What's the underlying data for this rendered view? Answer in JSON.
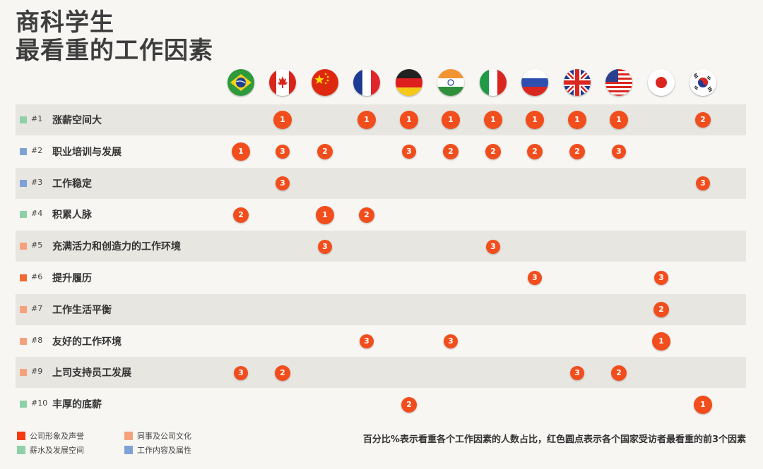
{
  "title": {
    "line1": "商科学生",
    "line2": "最看重的工作因素"
  },
  "note": "百分比%表示看重各个工作因素的人数占比，红色圆点表示各个国家受访者最看重的前3个因素",
  "legend": [
    {
      "label": "公司形象及声誉",
      "color": "#f53a12"
    },
    {
      "label": "同事及公司文化",
      "color": "#f5a27c"
    },
    {
      "label": "薪水及发展空间",
      "color": "#8ed1a8"
    },
    {
      "label": "工作内容及属性",
      "color": "#7fa2d6"
    }
  ],
  "chart_data": {
    "type": "table",
    "countries": [
      {
        "flag": "brazil-flag-icon"
      },
      {
        "flag": "canada-flag-icon"
      },
      {
        "flag": "china-flag-icon"
      },
      {
        "flag": "france-flag-icon"
      },
      {
        "flag": "germany-flag-icon"
      },
      {
        "flag": "india-flag-icon"
      },
      {
        "flag": "italy-flag-icon"
      },
      {
        "flag": "russia-flag-icon"
      },
      {
        "flag": "uk-flag-icon"
      },
      {
        "flag": "usa-flag-icon"
      },
      {
        "flag": "japan-flag-icon"
      },
      {
        "flag": "korea-flag-icon"
      }
    ],
    "factors": [
      {
        "rank": "#1",
        "label": "涨薪空间大",
        "category_color": "#8ed1a8",
        "ranks": [
          null,
          1,
          null,
          1,
          1,
          1,
          1,
          1,
          1,
          1,
          null,
          2
        ]
      },
      {
        "rank": "#2",
        "label": "职业培训与发展",
        "category_color": "#7fa2d6",
        "ranks": [
          1,
          3,
          2,
          null,
          3,
          2,
          2,
          2,
          2,
          3,
          null,
          null
        ]
      },
      {
        "rank": "#3",
        "label": "工作稳定",
        "category_color": "#7fa2d6",
        "ranks": [
          null,
          3,
          null,
          null,
          null,
          null,
          null,
          null,
          null,
          null,
          null,
          3
        ]
      },
      {
        "rank": "#4",
        "label": "积累人脉",
        "category_color": "#8ed1a8",
        "ranks": [
          2,
          null,
          1,
          2,
          null,
          null,
          null,
          null,
          null,
          null,
          null,
          null
        ]
      },
      {
        "rank": "#5",
        "label": "充满活力和创造力的工作环境",
        "category_color": "#f5a27c",
        "ranks": [
          null,
          null,
          3,
          null,
          null,
          null,
          3,
          null,
          null,
          null,
          null,
          null
        ]
      },
      {
        "rank": "#6",
        "label": "提升履历",
        "category_color": "#f06a32",
        "ranks": [
          null,
          null,
          null,
          null,
          null,
          null,
          null,
          3,
          null,
          null,
          3,
          null
        ]
      },
      {
        "rank": "#7",
        "label": "工作生活平衡",
        "category_color": "#f5a27c",
        "ranks": [
          null,
          null,
          null,
          null,
          null,
          null,
          null,
          null,
          null,
          null,
          2,
          null
        ]
      },
      {
        "rank": "#8",
        "label": "友好的工作环境",
        "category_color": "#f5a27c",
        "ranks": [
          null,
          null,
          null,
          3,
          null,
          3,
          null,
          null,
          null,
          null,
          1,
          null
        ]
      },
      {
        "rank": "#9",
        "label": "上司支持员工发展",
        "category_color": "#f5a27c",
        "ranks": [
          3,
          2,
          null,
          null,
          null,
          null,
          null,
          null,
          3,
          2,
          null,
          null
        ]
      },
      {
        "rank": "#10",
        "label": "丰厚的底薪",
        "category_color": "#8ed1a8",
        "ranks": [
          null,
          null,
          null,
          null,
          2,
          null,
          null,
          null,
          null,
          null,
          null,
          1
        ]
      }
    ]
  }
}
